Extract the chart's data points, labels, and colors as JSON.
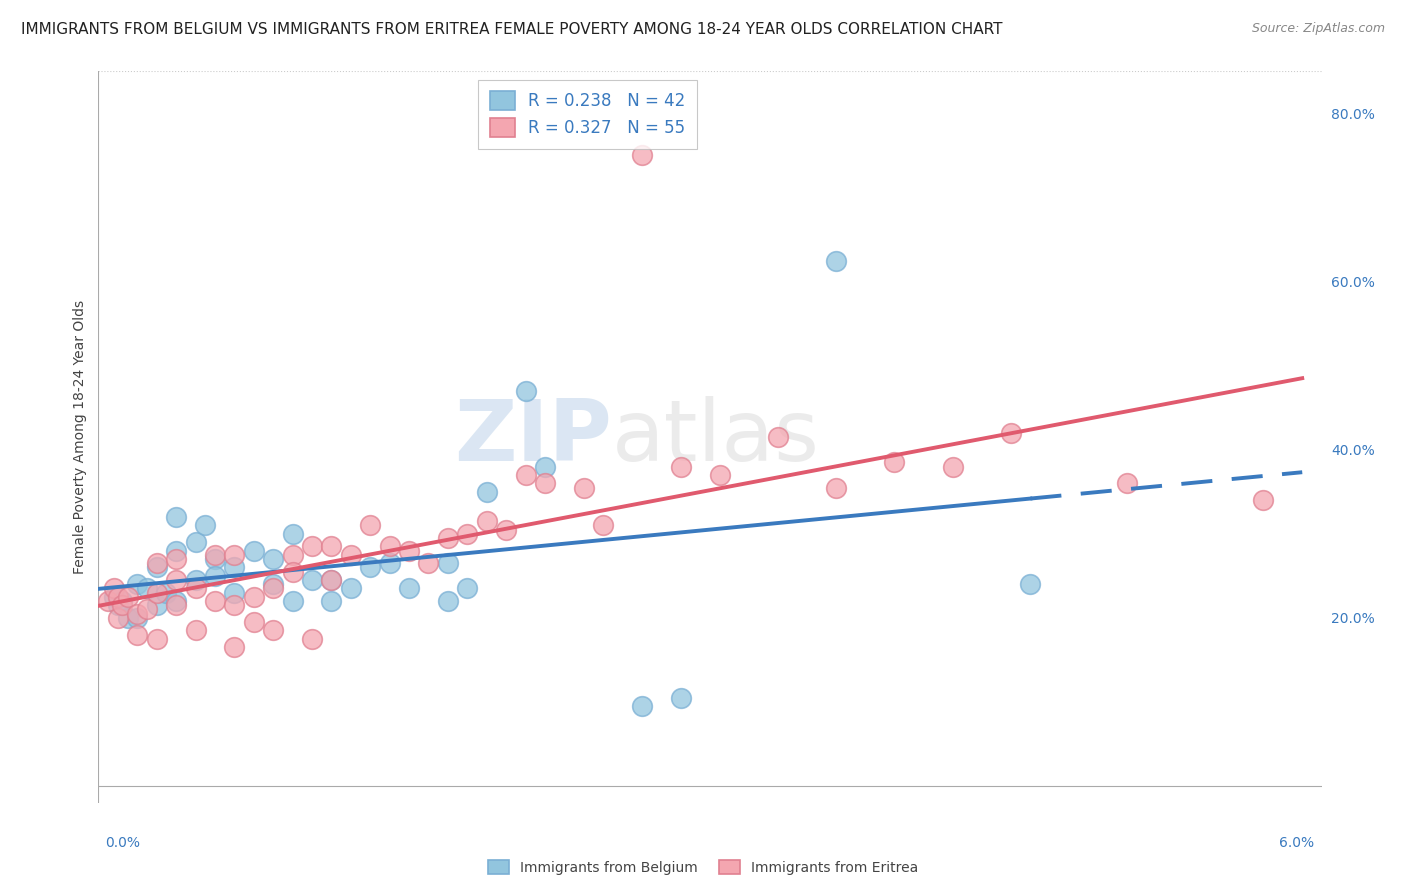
{
  "title": "IMMIGRANTS FROM BELGIUM VS IMMIGRANTS FROM ERITREA FEMALE POVERTY AMONG 18-24 YEAR OLDS CORRELATION CHART",
  "source": "Source: ZipAtlas.com",
  "ylabel": "Female Poverty Among 18-24 Year Olds",
  "legend_belgium": {
    "label": "Immigrants from Belgium",
    "R": 0.238,
    "N": 42,
    "color": "#92c5de"
  },
  "legend_eritrea": {
    "label": "Immigrants from Eritrea",
    "R": 0.327,
    "N": 55,
    "color": "#f4a6b0"
  },
  "belgium_line_color": "#3a7abf",
  "eritrea_line_color": "#e05a6e",
  "watermark_text": "ZIPatlas",
  "xlim": [
    0.0,
    0.063
  ],
  "ylim": [
    -0.02,
    0.85
  ],
  "right_yticks": [
    0.2,
    0.4,
    0.6,
    0.8
  ],
  "right_yticklabels": [
    "20.0%",
    "40.0%",
    "60.0%",
    "80.0%"
  ],
  "background_color": "#ffffff",
  "grid_color": "#cccccc",
  "title_fontsize": 11,
  "source_fontsize": 9,
  "legend_fontsize": 12,
  "belgium_scatter": [
    [
      0.0008,
      0.225
    ],
    [
      0.001,
      0.215
    ],
    [
      0.0012,
      0.22
    ],
    [
      0.0015,
      0.2
    ],
    [
      0.002,
      0.24
    ],
    [
      0.002,
      0.2
    ],
    [
      0.0025,
      0.235
    ],
    [
      0.003,
      0.26
    ],
    [
      0.003,
      0.215
    ],
    [
      0.0035,
      0.23
    ],
    [
      0.004,
      0.28
    ],
    [
      0.004,
      0.22
    ],
    [
      0.004,
      0.32
    ],
    [
      0.005,
      0.29
    ],
    [
      0.005,
      0.245
    ],
    [
      0.0055,
      0.31
    ],
    [
      0.006,
      0.27
    ],
    [
      0.006,
      0.25
    ],
    [
      0.007,
      0.23
    ],
    [
      0.007,
      0.26
    ],
    [
      0.008,
      0.28
    ],
    [
      0.009,
      0.27
    ],
    [
      0.009,
      0.24
    ],
    [
      0.01,
      0.3
    ],
    [
      0.01,
      0.22
    ],
    [
      0.011,
      0.245
    ],
    [
      0.012,
      0.245
    ],
    [
      0.012,
      0.22
    ],
    [
      0.013,
      0.235
    ],
    [
      0.014,
      0.26
    ],
    [
      0.015,
      0.265
    ],
    [
      0.016,
      0.235
    ],
    [
      0.018,
      0.22
    ],
    [
      0.018,
      0.265
    ],
    [
      0.019,
      0.235
    ],
    [
      0.02,
      0.35
    ],
    [
      0.022,
      0.47
    ],
    [
      0.023,
      0.38
    ],
    [
      0.028,
      0.095
    ],
    [
      0.03,
      0.105
    ],
    [
      0.038,
      0.625
    ],
    [
      0.048,
      0.24
    ]
  ],
  "eritrea_scatter": [
    [
      0.0005,
      0.22
    ],
    [
      0.0008,
      0.235
    ],
    [
      0.001,
      0.2
    ],
    [
      0.001,
      0.225
    ],
    [
      0.0012,
      0.215
    ],
    [
      0.0015,
      0.225
    ],
    [
      0.002,
      0.205
    ],
    [
      0.002,
      0.18
    ],
    [
      0.0025,
      0.21
    ],
    [
      0.003,
      0.265
    ],
    [
      0.003,
      0.23
    ],
    [
      0.003,
      0.175
    ],
    [
      0.004,
      0.27
    ],
    [
      0.004,
      0.245
    ],
    [
      0.004,
      0.215
    ],
    [
      0.005,
      0.235
    ],
    [
      0.005,
      0.185
    ],
    [
      0.006,
      0.275
    ],
    [
      0.006,
      0.22
    ],
    [
      0.007,
      0.275
    ],
    [
      0.007,
      0.215
    ],
    [
      0.007,
      0.165
    ],
    [
      0.008,
      0.225
    ],
    [
      0.008,
      0.195
    ],
    [
      0.009,
      0.235
    ],
    [
      0.009,
      0.185
    ],
    [
      0.01,
      0.275
    ],
    [
      0.01,
      0.255
    ],
    [
      0.011,
      0.285
    ],
    [
      0.011,
      0.175
    ],
    [
      0.012,
      0.285
    ],
    [
      0.012,
      0.245
    ],
    [
      0.013,
      0.275
    ],
    [
      0.014,
      0.31
    ],
    [
      0.015,
      0.285
    ],
    [
      0.016,
      0.28
    ],
    [
      0.017,
      0.265
    ],
    [
      0.018,
      0.295
    ],
    [
      0.019,
      0.3
    ],
    [
      0.02,
      0.315
    ],
    [
      0.021,
      0.305
    ],
    [
      0.022,
      0.37
    ],
    [
      0.023,
      0.36
    ],
    [
      0.025,
      0.355
    ],
    [
      0.026,
      0.31
    ],
    [
      0.028,
      0.75
    ],
    [
      0.03,
      0.38
    ],
    [
      0.032,
      0.37
    ],
    [
      0.035,
      0.415
    ],
    [
      0.038,
      0.355
    ],
    [
      0.041,
      0.385
    ],
    [
      0.044,
      0.38
    ],
    [
      0.047,
      0.42
    ],
    [
      0.053,
      0.36
    ],
    [
      0.06,
      0.34
    ]
  ]
}
